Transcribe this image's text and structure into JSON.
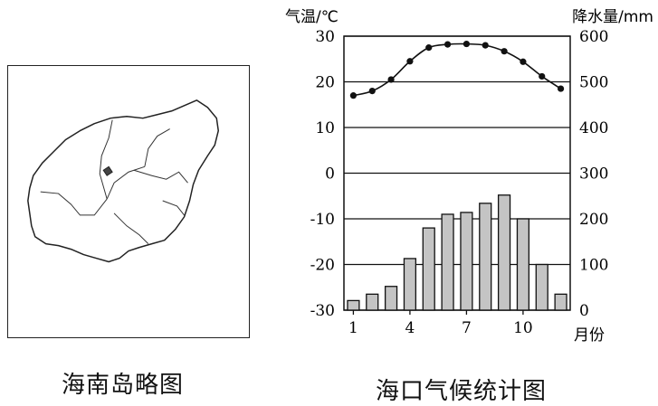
{
  "map": {
    "caption": "海南岛略图"
  },
  "chart": {
    "caption": "海口气候统计图"
  },
  "chart_data": {
    "type": "bar+line",
    "title": "海口气候统计图",
    "xlabel": "月份",
    "x": [
      1,
      2,
      3,
      4,
      5,
      6,
      7,
      8,
      9,
      10,
      11,
      12
    ],
    "x_tick_labels": [
      "1",
      "4",
      "7",
      "10"
    ],
    "x_tick_values": [
      1,
      4,
      7,
      10
    ],
    "left_axis": {
      "label": "气温/℃",
      "lim": [
        -30,
        30
      ],
      "ticks": [
        "30",
        "20",
        "10",
        "0",
        "-10",
        "-20",
        "-30"
      ]
    },
    "right_axis": {
      "label": "降水量/mm",
      "lim": [
        0,
        600
      ],
      "ticks": [
        "600",
        "500",
        "400",
        "300",
        "200",
        "100",
        "0"
      ]
    },
    "series": [
      {
        "kind": "line",
        "axis": "left",
        "values": [
          17.0,
          18.0,
          20.5,
          24.5,
          27.5,
          28.2,
          28.3,
          28.0,
          26.7,
          24.4,
          21.2,
          18.5
        ]
      },
      {
        "kind": "bar",
        "axis": "right",
        "values": [
          21,
          35,
          52,
          113,
          180,
          210,
          214,
          234,
          252,
          200,
          100,
          35
        ]
      }
    ],
    "grid": "horizontal",
    "colors": {
      "bar_fill": "#c4c4c4",
      "bar_stroke": "#111111",
      "line": "#111111"
    }
  }
}
